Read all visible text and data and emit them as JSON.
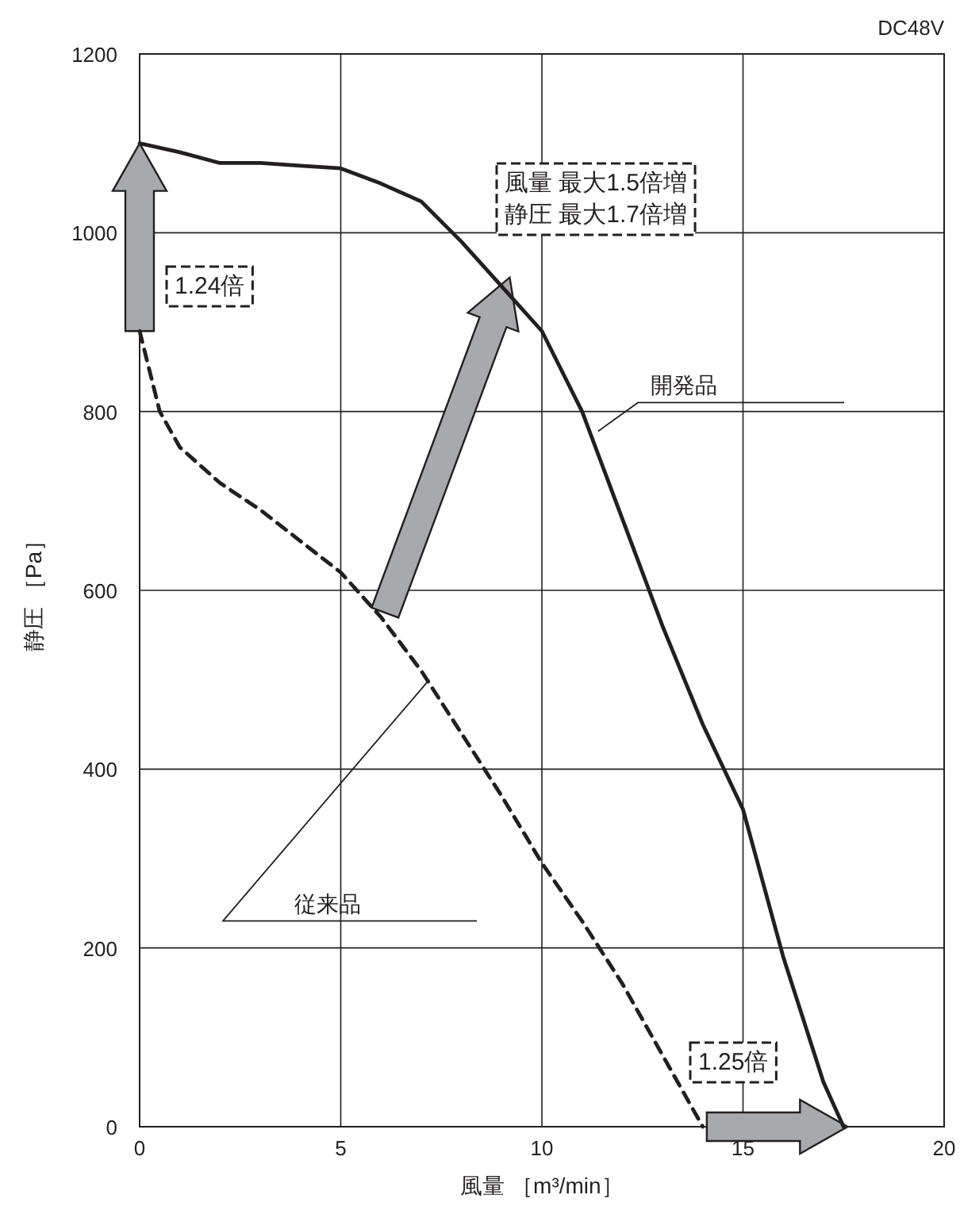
{
  "chart_data": {
    "type": "line",
    "xlabel": "風量 ［m³/min］",
    "ylabel": "静圧 ［Pa］",
    "xlim": [
      0,
      20
    ],
    "xticks": [
      0,
      5,
      10,
      15,
      20
    ],
    "ylim": [
      0,
      1200
    ],
    "yticks": [
      0,
      200,
      400,
      600,
      800,
      1000,
      1200
    ],
    "grid": true,
    "series": [
      {
        "color": "#231f20",
        "line_style": "solid",
        "x": [
          0,
          1,
          2,
          3,
          4,
          5,
          6,
          7,
          8,
          9,
          10,
          11,
          12,
          13,
          14,
          15,
          16,
          17,
          17.5
        ],
        "values": [
          1100,
          1090,
          1078,
          1078,
          1075,
          1072,
          1055,
          1035,
          990,
          940,
          890,
          800,
          680,
          560,
          450,
          355,
          190,
          50,
          0
        ]
      },
      {
        "color": "#231f20",
        "line_style": "dashed",
        "x": [
          0,
          0.5,
          1,
          2,
          3,
          4,
          5,
          6,
          7,
          8,
          9,
          10,
          11,
          12,
          13,
          14
        ],
        "values": [
          890,
          800,
          760,
          720,
          690,
          655,
          620,
          570,
          510,
          440,
          370,
          295,
          230,
          160,
          80,
          0
        ]
      }
    ],
    "annotations": [
      "DC48V",
      "1.24倍",
      "風量 最大1.5倍増",
      "静圧 最大1.7倍増",
      "1.25倍",
      {
        "text": "開発品",
        "x": 11.4,
        "y": 778
      },
      {
        "text": "従来品",
        "x": 7.2,
        "y": 500
      }
    ]
  }
}
